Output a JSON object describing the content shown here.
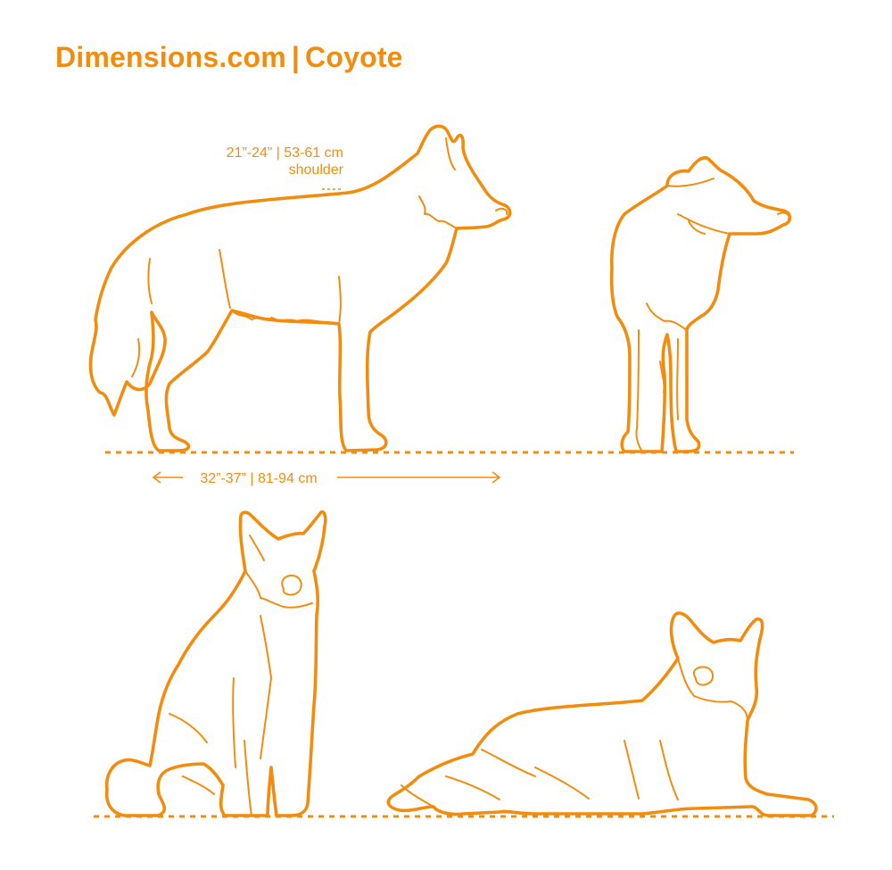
{
  "title": {
    "brand": "Dimensions.com",
    "separator": "|",
    "subject": "Coyote"
  },
  "dimensions": {
    "shoulder_height": "21”-24” | 53-61 cm",
    "shoulder_label": "shoulder",
    "body_length": "32”-37” | 81-94 cm"
  },
  "colors": {
    "accent": "#F28C0F",
    "background": "#FFFFFF"
  }
}
